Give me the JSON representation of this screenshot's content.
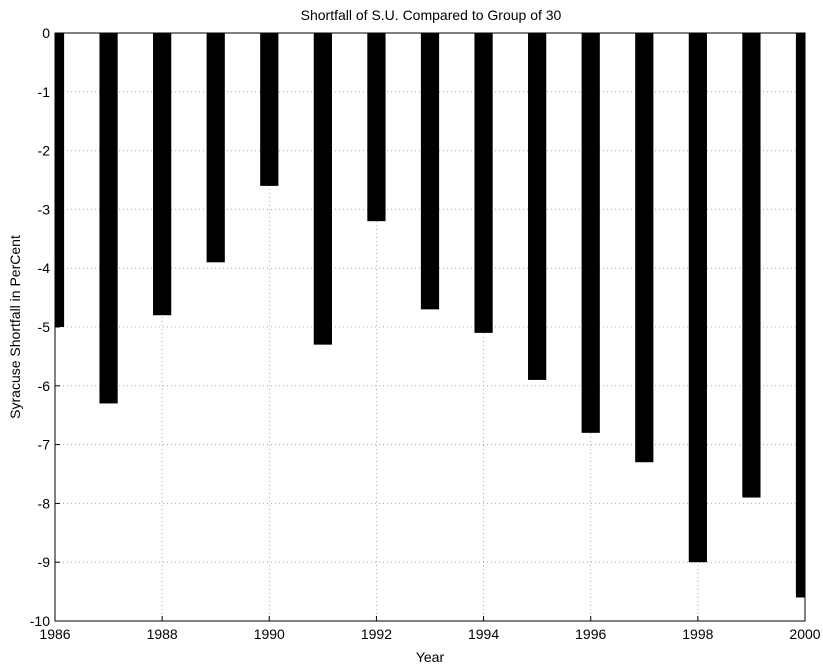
{
  "chart_data": {
    "type": "bar",
    "title": "Shortfall of S.U. Compared to Group of 30",
    "xlabel": "Year",
    "ylabel": "Syracuse Shortfall in PerCent",
    "categories": [
      "1986",
      "1987",
      "1988",
      "1989",
      "1990",
      "1991",
      "1992",
      "1993",
      "1994",
      "1995",
      "1996",
      "1997",
      "1998",
      "1999",
      "2000"
    ],
    "values": [
      -5.0,
      -6.3,
      -4.8,
      -3.9,
      -2.6,
      -5.3,
      -3.2,
      -4.7,
      -5.1,
      -5.9,
      -6.8,
      -7.3,
      -9.0,
      -7.9,
      -9.6
    ],
    "xlim": [
      1986,
      2000
    ],
    "ylim": [
      -10,
      0
    ],
    "xticks": [
      "1986",
      "1988",
      "1990",
      "1992",
      "1994",
      "1996",
      "1998",
      "2000"
    ],
    "yticks": [
      "0",
      "-1",
      "-2",
      "-3",
      "-4",
      "-5",
      "-6",
      "-7",
      "-8",
      "-9",
      "-10"
    ],
    "grid": true,
    "bar_color": "#000000"
  }
}
